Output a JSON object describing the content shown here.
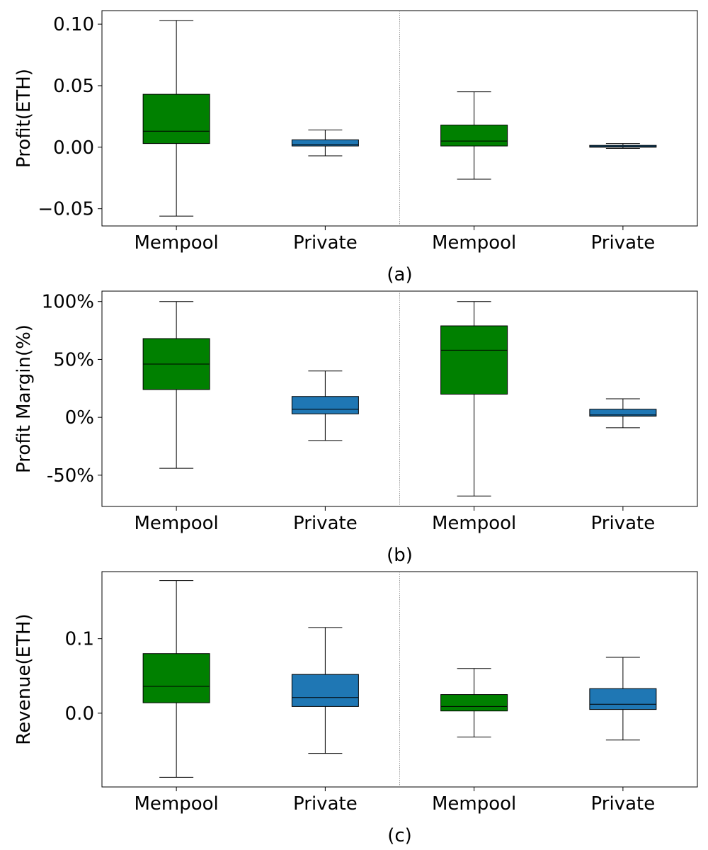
{
  "colors": {
    "mempool": "#008000",
    "private": "#1f77b4"
  },
  "chart_data": [
    {
      "type": "box",
      "panel_label": "(a)",
      "ylabel": "Profit(ETH)",
      "categories": [
        "Mempool",
        "Private",
        "Mempool",
        "Private"
      ],
      "series_kind": [
        "mempool",
        "private",
        "mempool",
        "private"
      ],
      "yticks": [
        -0.05,
        0.0,
        0.05,
        0.1
      ],
      "ytick_labels": [
        "−0.05",
        "0.00",
        "0.05",
        "0.10"
      ],
      "ylim": [
        -0.064,
        0.111
      ],
      "boxes": [
        {
          "whisker_low": -0.056,
          "q1": 0.003,
          "median": 0.013,
          "q3": 0.043,
          "whisker_high": 0.103
        },
        {
          "whisker_low": -0.007,
          "q1": 0.001,
          "median": 0.002,
          "q3": 0.006,
          "whisker_high": 0.014
        },
        {
          "whisker_low": -0.026,
          "q1": 0.001,
          "median": 0.005,
          "q3": 0.018,
          "whisker_high": 0.045
        },
        {
          "whisker_low": -0.001,
          "q1": 0.0,
          "median": 0.0005,
          "q3": 0.0015,
          "whisker_high": 0.003
        }
      ],
      "divider_after_category": 2
    },
    {
      "type": "box",
      "panel_label": "(b)",
      "ylabel": "Profit Margin(%)",
      "categories": [
        "Mempool",
        "Private",
        "Mempool",
        "Private"
      ],
      "series_kind": [
        "mempool",
        "private",
        "mempool",
        "private"
      ],
      "yticks": [
        -50,
        0,
        50,
        100
      ],
      "ytick_labels": [
        "-50%",
        "0%",
        "50%",
        "100%"
      ],
      "ylim": [
        -77,
        109
      ],
      "boxes": [
        {
          "whisker_low": -44,
          "q1": 24,
          "median": 46,
          "q3": 68,
          "whisker_high": 100
        },
        {
          "whisker_low": -20,
          "q1": 3,
          "median": 7,
          "q3": 18,
          "whisker_high": 40
        },
        {
          "whisker_low": -68,
          "q1": 20,
          "median": 58,
          "q3": 79,
          "whisker_high": 100
        },
        {
          "whisker_low": -9,
          "q1": 1,
          "median": 2,
          "q3": 7,
          "whisker_high": 16
        }
      ],
      "divider_after_category": 2
    },
    {
      "type": "box",
      "panel_label": "(c)",
      "ylabel": "Revenue(ETH)",
      "categories": [
        "Mempool",
        "Private",
        "Mempool",
        "Private"
      ],
      "series_kind": [
        "mempool",
        "private",
        "mempool",
        "private"
      ],
      "yticks": [
        0.0,
        0.1
      ],
      "ytick_labels": [
        "0.0",
        "0.1"
      ],
      "ylim": [
        -0.099,
        0.19
      ],
      "boxes": [
        {
          "whisker_low": -0.086,
          "q1": 0.014,
          "median": 0.036,
          "q3": 0.08,
          "whisker_high": 0.178
        },
        {
          "whisker_low": -0.054,
          "q1": 0.009,
          "median": 0.021,
          "q3": 0.052,
          "whisker_high": 0.115
        },
        {
          "whisker_low": -0.032,
          "q1": 0.003,
          "median": 0.009,
          "q3": 0.025,
          "whisker_high": 0.06
        },
        {
          "whisker_low": -0.036,
          "q1": 0.005,
          "median": 0.012,
          "q3": 0.033,
          "whisker_high": 0.075
        }
      ],
      "divider_after_category": 2
    }
  ]
}
